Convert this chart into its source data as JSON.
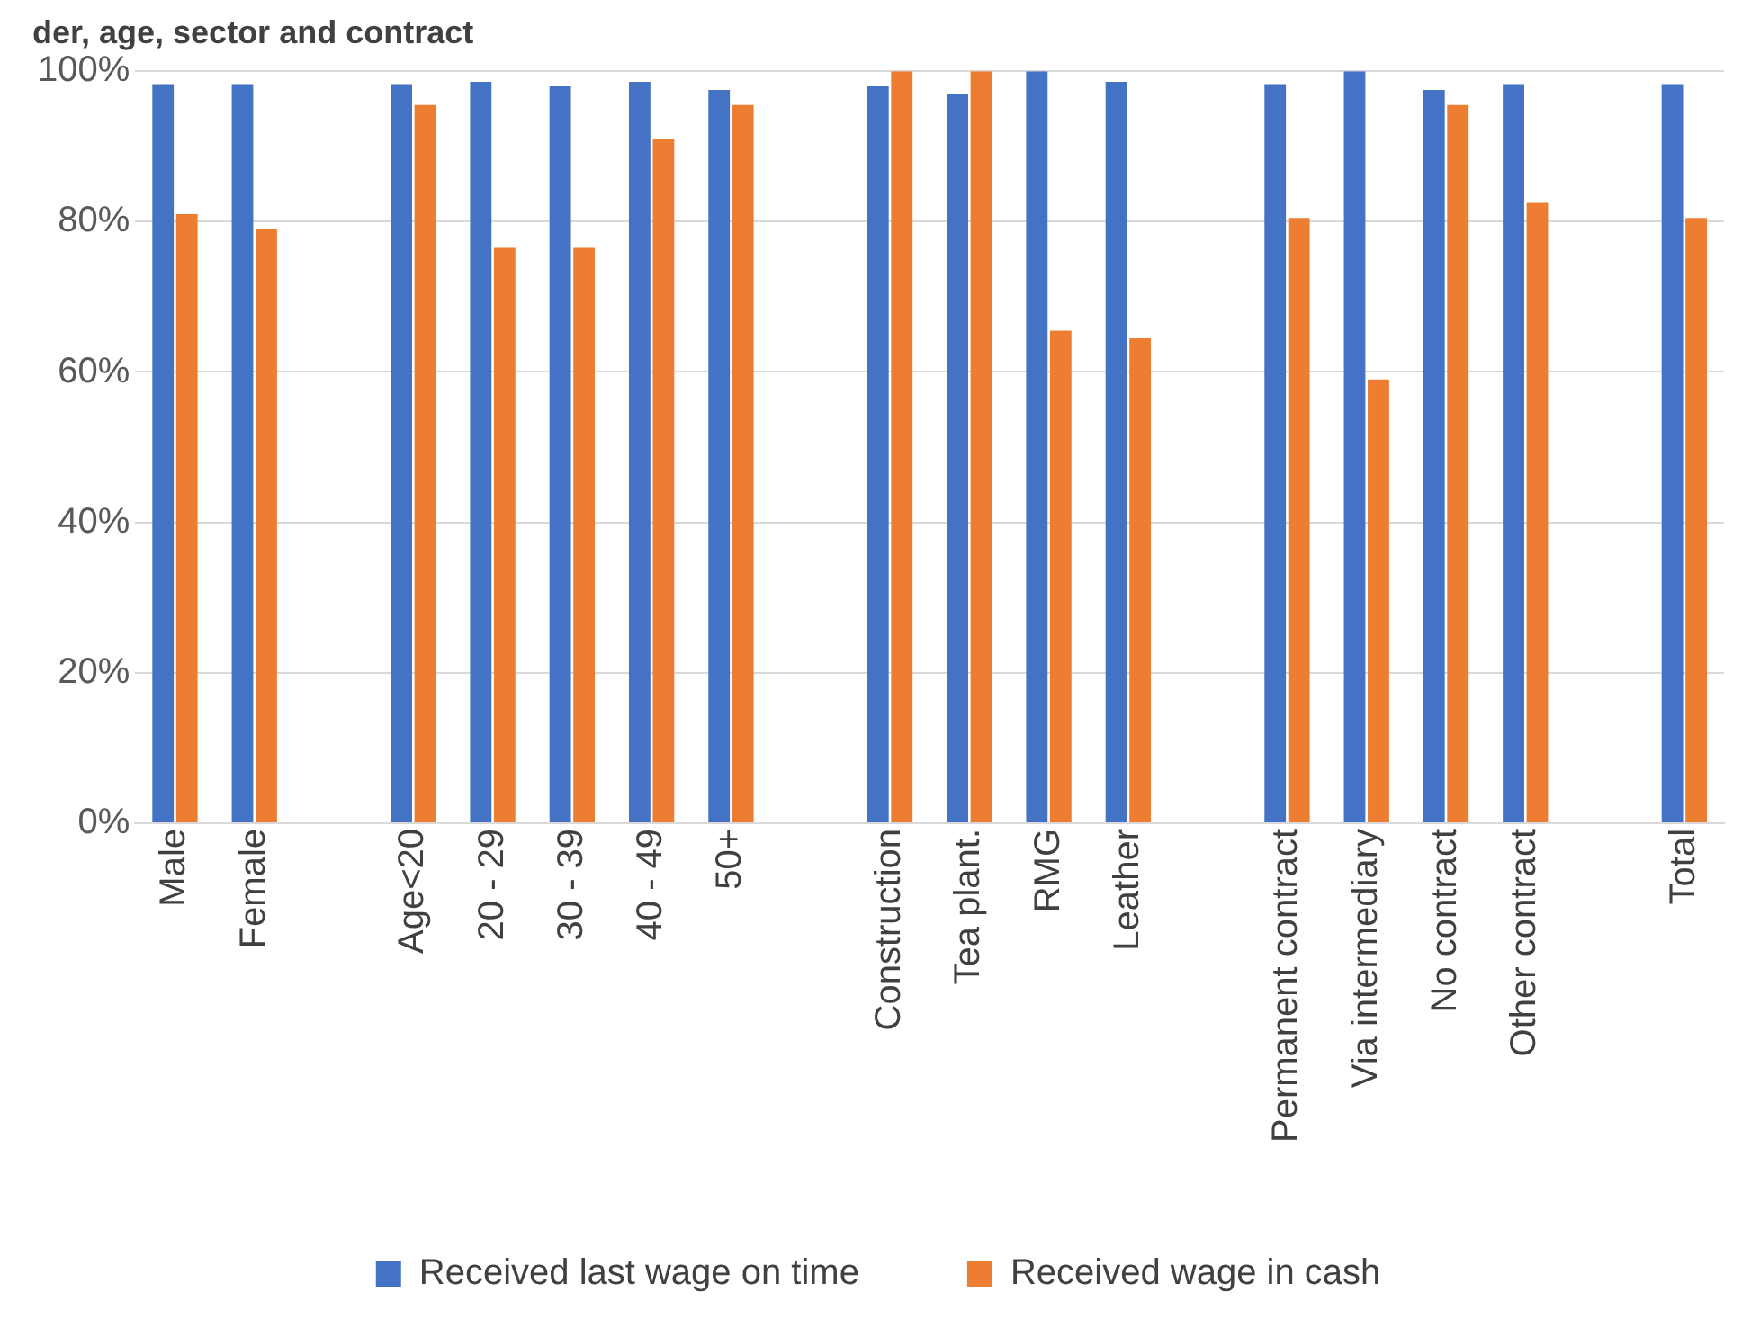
{
  "chart_data": {
    "type": "bar",
    "title": "der, age, sector and contract",
    "categories": [
      "Male",
      "Female",
      null,
      "Age<20",
      "20 - 29",
      "30 - 39",
      "40 - 49",
      "50+",
      null,
      "Construction",
      "Tea plant.",
      "RMG",
      "Leather",
      null,
      "Permanent contract",
      "Via intermediary",
      "No contract",
      "Other contract",
      null,
      "Total"
    ],
    "series": [
      {
        "name": "Received last wage on time",
        "color": "#4472c4",
        "values": [
          98.3,
          98.3,
          null,
          98.3,
          98.6,
          98,
          98.6,
          97.5,
          null,
          98,
          97,
          100,
          98.6,
          null,
          98.3,
          100,
          97.5,
          98.3,
          null,
          98.3
        ]
      },
      {
        "name": "Received wage in cash",
        "color": "#ed7d31",
        "values": [
          81,
          79,
          null,
          95.5,
          76.5,
          76.5,
          91,
          95.5,
          null,
          100,
          100,
          65.5,
          64.5,
          null,
          80.5,
          59,
          95.5,
          82.5,
          null,
          80.5
        ]
      }
    ],
    "ylim": [
      0,
      100
    ],
    "yticks": [
      {
        "value": 0,
        "label": "0%"
      },
      {
        "value": 20,
        "label": "20%"
      },
      {
        "value": 40,
        "label": "40%"
      },
      {
        "value": 60,
        "label": "60%"
      },
      {
        "value": 80,
        "label": "80%"
      },
      {
        "value": 100,
        "label": "100%"
      }
    ],
    "grid": "y",
    "legend": "bottom"
  }
}
